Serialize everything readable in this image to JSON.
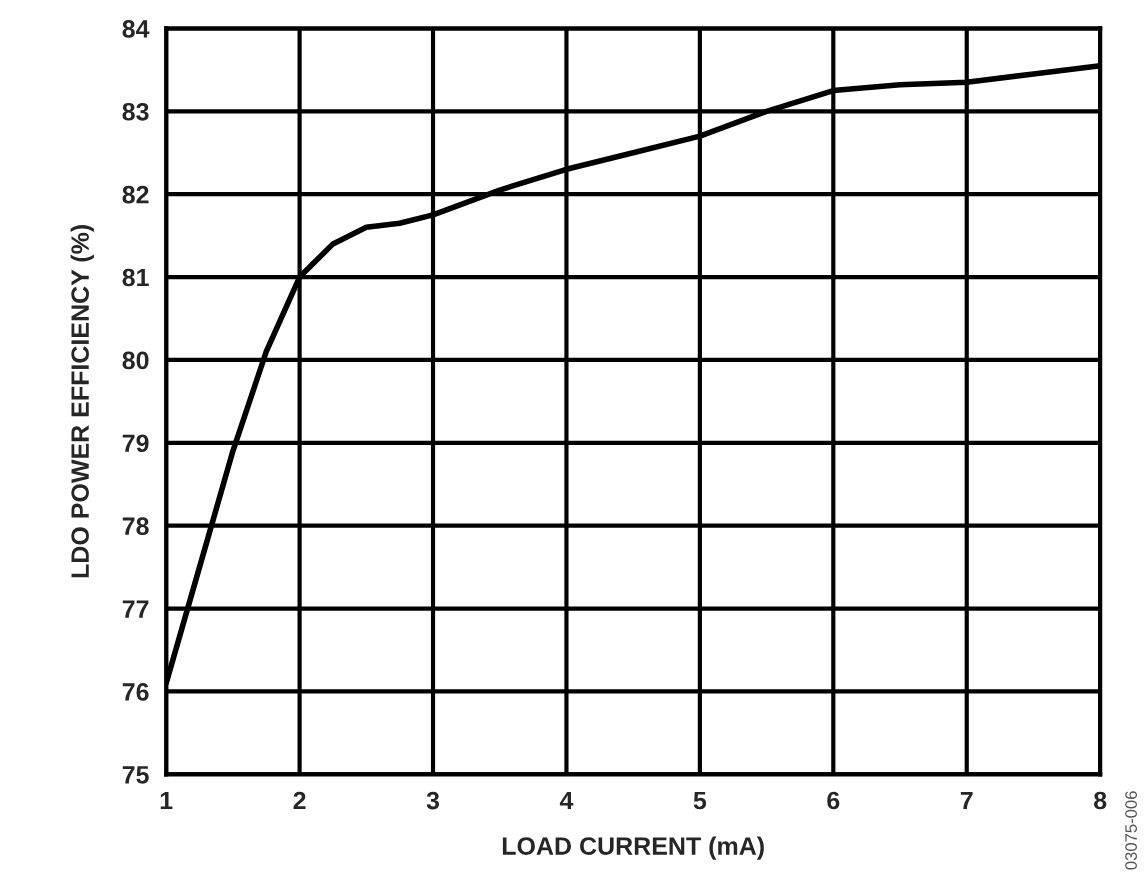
{
  "chart_data": {
    "type": "line",
    "xlabel": "LOAD CURRENT (mA)",
    "ylabel": "LDO POWER EFFICIENCY (%)",
    "x": [
      1,
      1.25,
      1.5,
      1.75,
      2,
      2.25,
      2.5,
      2.75,
      3,
      3.5,
      4,
      4.5,
      5,
      5.5,
      6,
      6.5,
      7,
      7.5,
      8
    ],
    "series": [
      {
        "color": "#000000",
        "values": [
          76.1,
          77.5,
          78.9,
          80.1,
          81.0,
          81.4,
          81.6,
          81.65,
          81.75,
          82.05,
          82.3,
          82.5,
          82.7,
          83.0,
          83.25,
          83.32,
          83.35,
          83.45,
          83.55
        ]
      }
    ],
    "xlim": [
      1,
      8
    ],
    "xticks": [
      1,
      2,
      3,
      4,
      5,
      6,
      7,
      8
    ],
    "ylim": [
      75,
      84
    ],
    "yticks": [
      75,
      76,
      77,
      78,
      79,
      80,
      81,
      82,
      83,
      84
    ],
    "grid": true,
    "line_style": "solid",
    "marker": "none",
    "annotations": [
      "03075-006"
    ]
  }
}
